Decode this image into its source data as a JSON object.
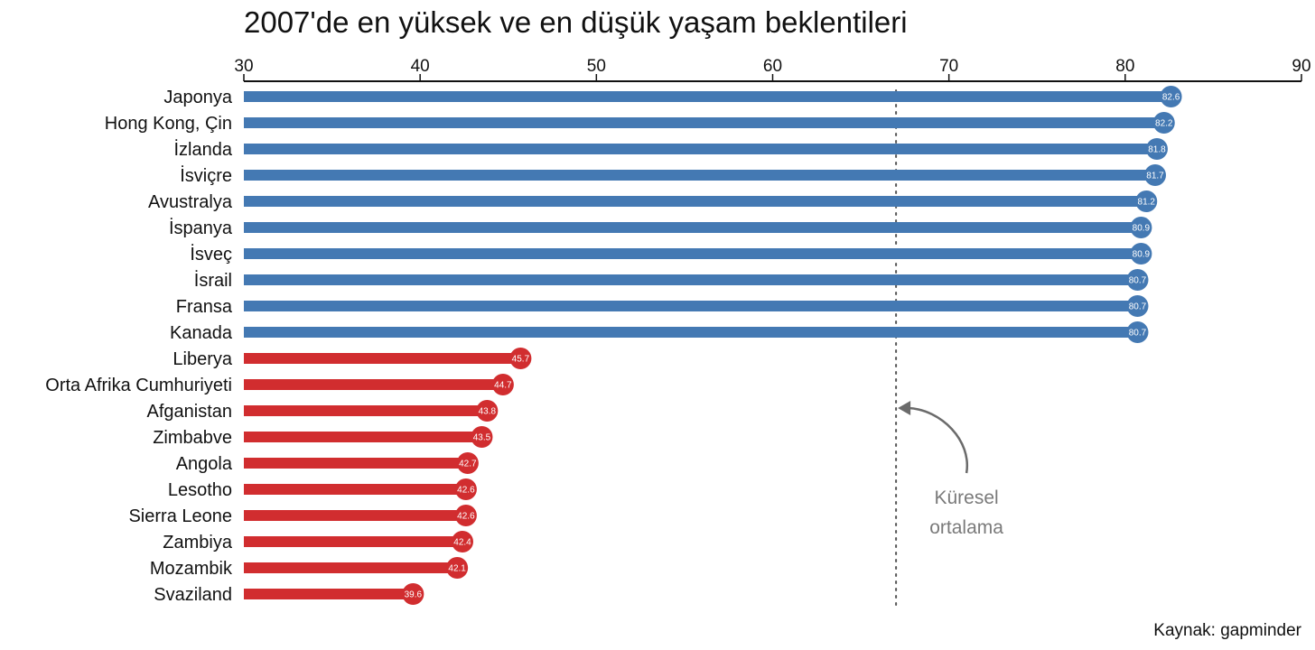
{
  "chart_data": {
    "type": "bar",
    "title": "2007'de en yüksek ve en düşük yaşam beklentileri",
    "xlim": [
      30,
      90
    ],
    "x_ticks": [
      "30",
      "40",
      "50",
      "60",
      "70",
      "80",
      "90"
    ],
    "categories": [
      "Japonya",
      "Hong Kong, Çin",
      "İzlanda",
      "İsviçre",
      "Avustralya",
      "İspanya",
      "İsveç",
      "İsrail",
      "Fransa",
      "Kanada",
      "Liberya",
      "Orta Afrika Cumhuriyeti",
      "Afganistan",
      "Zimbabve",
      "Angola",
      "Lesotho",
      "Sierra Leone",
      "Zambiya",
      "Mozambik",
      "Svaziland"
    ],
    "values": [
      82.6,
      82.2,
      81.8,
      81.7,
      81.2,
      80.9,
      80.9,
      80.7,
      80.7,
      80.7,
      45.7,
      44.7,
      43.8,
      43.5,
      42.7,
      42.6,
      42.6,
      42.4,
      42.1,
      39.6
    ],
    "value_labels": [
      "82.6",
      "82.2",
      "81.8",
      "81.7",
      "81.2",
      "80.9",
      "80.9",
      "80.7",
      "80.7",
      "80.7",
      "45.7",
      "44.7",
      "43.8",
      "43.5",
      "42.7",
      "42.6",
      "42.6",
      "42.4",
      "42.1",
      "39.6"
    ],
    "groups": [
      "high",
      "high",
      "high",
      "high",
      "high",
      "high",
      "high",
      "high",
      "high",
      "high",
      "low",
      "low",
      "low",
      "low",
      "low",
      "low",
      "low",
      "low",
      "low",
      "low"
    ],
    "colors": {
      "high": "#4479b3",
      "low": "#d12d2f"
    },
    "axis_position": "top",
    "grid": false,
    "reference_line": {
      "value": 67,
      "label_line1": "Küresel",
      "label_line2": "ortalama",
      "style": "dotted"
    },
    "source": "Kaynak: gapminder"
  }
}
